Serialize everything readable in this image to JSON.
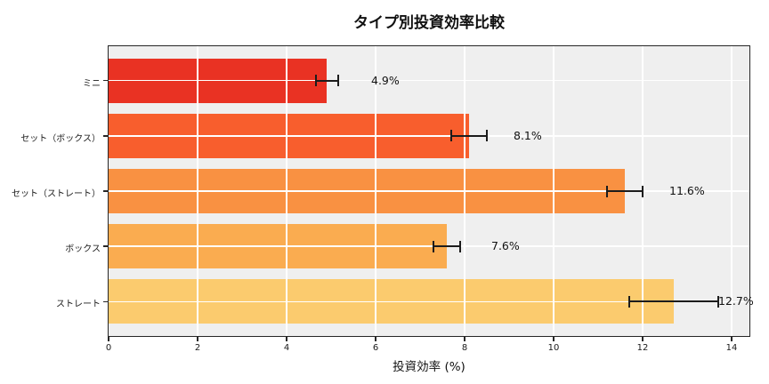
{
  "chart_data": {
    "type": "bar",
    "orientation": "horizontal",
    "title": "タイプ別投資効率比較",
    "xlabel": "投資効率 (%)",
    "ylabel": "",
    "categories": [
      "ミニ",
      "セット（ボックス）",
      "セット（ストレート）",
      "ボックス",
      "ストレート"
    ],
    "values": [
      4.9,
      8.1,
      11.6,
      7.6,
      12.7
    ],
    "errors": [
      0.25,
      0.4,
      0.4,
      0.3,
      1.0
    ],
    "value_labels": [
      "4.9%",
      "8.1%",
      "11.6%",
      "7.6%",
      "12.7%"
    ],
    "bar_colors": [
      "#e93223",
      "#f85e2d",
      "#f99142",
      "#faac50",
      "#fbcb6e"
    ],
    "xticks": [
      0,
      2,
      4,
      6,
      8,
      10,
      12,
      14
    ],
    "xlim": [
      0,
      14.4
    ],
    "grid": true,
    "legend": "none",
    "plot_background": "#efefef",
    "grid_color": "#ffffff",
    "error_bar_color": "#1c1c1c"
  }
}
